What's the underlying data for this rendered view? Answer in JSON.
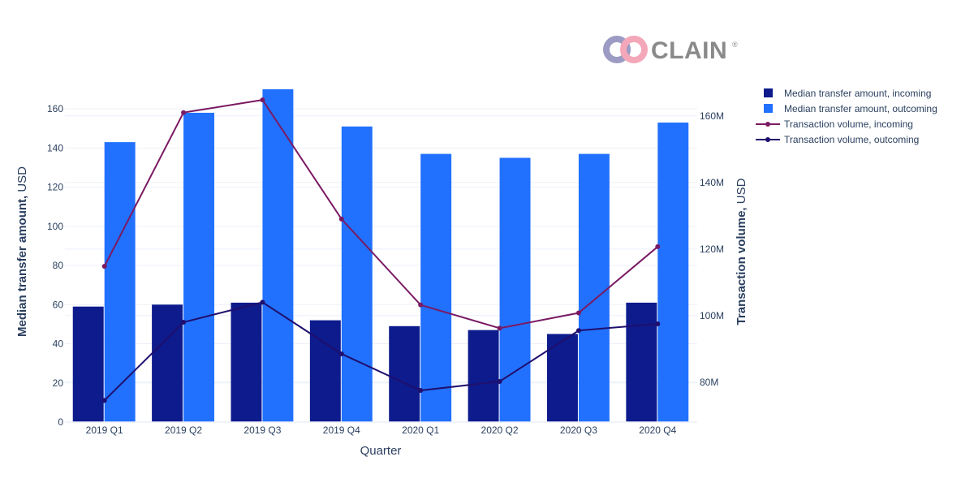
{
  "logo": {
    "text": "CLAIN",
    "mark": "®",
    "icon": "chain-link-icon",
    "colors": {
      "ring_left": "#9b9bc4",
      "ring_right": "#f4a7b9",
      "text": "#8a8a8a"
    }
  },
  "colors": {
    "median_incoming": "#0d1b8c",
    "median_outgoing": "#2271fe",
    "volume_incoming": "#7a1a63",
    "volume_outgoing": "#1f0f6e",
    "grid": "#ebf0f8",
    "axis_text": "#2a3f5f"
  },
  "chart_data": {
    "type": "bar",
    "categories": [
      "2019 Q1",
      "2019 Q2",
      "2019 Q3",
      "2019 Q4",
      "2020 Q1",
      "2020 Q2",
      "2020 Q3",
      "2020 Q4"
    ],
    "xlabel": "Quarter",
    "ylabel_bold": "Median transfer amount,",
    "ylabel_rest": " USD",
    "y2label_bold": "Transaction volume,",
    "y2label_rest": " USD",
    "ylim": [
      0,
      170
    ],
    "y2lim": [
      68000000,
      168000000
    ],
    "yticks": [
      0,
      20,
      40,
      60,
      80,
      100,
      120,
      140,
      160
    ],
    "y2ticks": [
      80000000,
      100000000,
      120000000,
      140000000,
      160000000
    ],
    "y2ticklabels": [
      "80M",
      "100M",
      "120M",
      "140M",
      "160M"
    ],
    "grid": true,
    "legend_position": "top-right",
    "series": [
      {
        "name": "Median transfer amount, incoming",
        "type": "bar",
        "axis": "y",
        "values": [
          59,
          60,
          61,
          52,
          49,
          47,
          45,
          61
        ]
      },
      {
        "name": "Median transfer amount, outcoming",
        "type": "bar",
        "axis": "y",
        "values": [
          143,
          158,
          170,
          151,
          137,
          135,
          137,
          153
        ]
      },
      {
        "name": "Transaction volume, incoming",
        "type": "line",
        "axis": "y2",
        "values": [
          114800000,
          161000000,
          164800000,
          129000000,
          103200000,
          96200000,
          100800000,
          120700000
        ]
      },
      {
        "name": "Transaction volume, outcoming",
        "type": "line",
        "axis": "y2",
        "values": [
          74500000,
          98000000,
          104000000,
          88500000,
          77500000,
          80200000,
          95500000,
          97500000
        ]
      }
    ]
  }
}
